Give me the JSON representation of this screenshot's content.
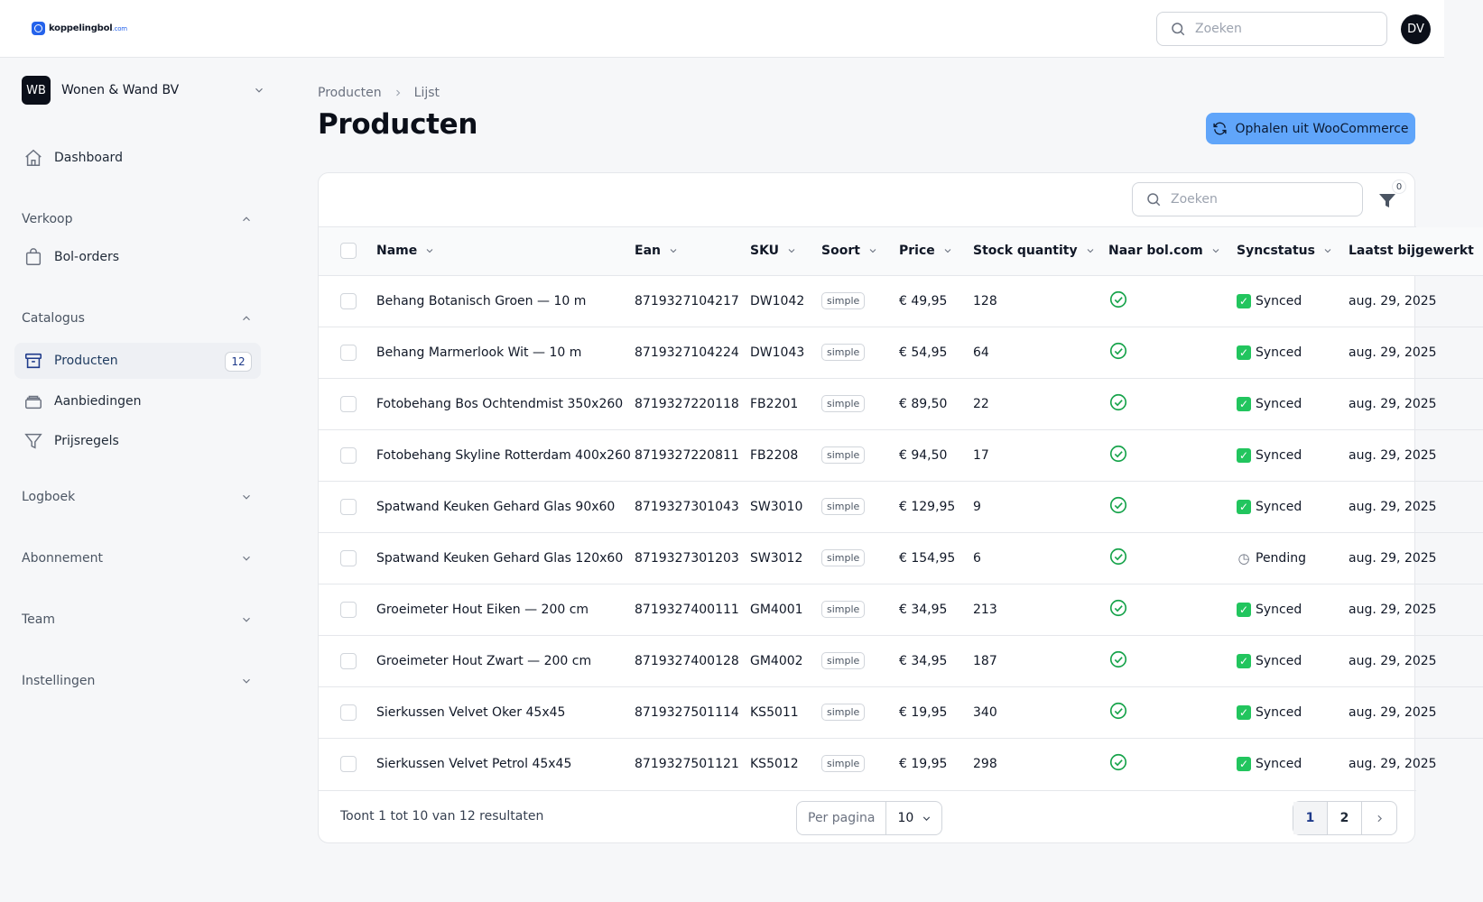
{
  "brand": {
    "name": "koppelingbol",
    "suffix": ".com"
  },
  "header": {
    "search_placeholder": "Zoeken",
    "user_initials": "DV"
  },
  "sidebar": {
    "org": {
      "initials": "WB",
      "name": "Wonen & Wand BV"
    },
    "dashboard": "Dashboard",
    "verkoop": {
      "label": "Verkoop",
      "items": [
        "Bol-orders"
      ]
    },
    "catalogus": {
      "label": "Catalogus",
      "items": [
        "Producten",
        "Aanbiedingen",
        "Prijsregels"
      ],
      "count": "12"
    },
    "groups": [
      "Logboek",
      "Abonnement",
      "Team",
      "Instellingen"
    ]
  },
  "breadcrumb": [
    "Producten",
    "Lijst"
  ],
  "page_title": "Producten",
  "fetch_button": "Ophalen uit WooCommerce",
  "table": {
    "search_placeholder": "Zoeken",
    "filter_count": "0",
    "columns": [
      "Name",
      "Ean",
      "SKU",
      "Soort",
      "Price",
      "Stock quantity",
      "Naar bol.com",
      "Syncstatus",
      "Laatst bijgewerkt"
    ],
    "rows": [
      {
        "name": "Behang Botanisch Groen — 10 m",
        "ean": "8719327104217",
        "sku": "DW1042",
        "type": "simple",
        "price": "€ 49,95",
        "stock": "128",
        "to_bol": true,
        "sync": "Synced",
        "updated": "aug. 29, 2025"
      },
      {
        "name": "Behang Marmerlook Wit — 10 m",
        "ean": "8719327104224",
        "sku": "DW1043",
        "type": "simple",
        "price": "€ 54,95",
        "stock": "64",
        "to_bol": true,
        "sync": "Synced",
        "updated": "aug. 29, 2025"
      },
      {
        "name": "Fotobehang Bos Ochtendmist 350x260",
        "ean": "8719327220118",
        "sku": "FB2201",
        "type": "simple",
        "price": "€ 89,50",
        "stock": "22",
        "to_bol": true,
        "sync": "Synced",
        "updated": "aug. 29, 2025"
      },
      {
        "name": "Fotobehang Skyline Rotterdam 400x260",
        "ean": "8719327220811",
        "sku": "FB2208",
        "type": "simple",
        "price": "€ 94,50",
        "stock": "17",
        "to_bol": true,
        "sync": "Synced",
        "updated": "aug. 29, 2025"
      },
      {
        "name": "Spatwand Keuken Gehard Glas 90x60",
        "ean": "8719327301043",
        "sku": "SW3010",
        "type": "simple",
        "price": "€ 129,95",
        "stock": "9",
        "to_bol": true,
        "sync": "Synced",
        "updated": "aug. 29, 2025"
      },
      {
        "name": "Spatwand Keuken Gehard Glas 120x60",
        "ean": "8719327301203",
        "sku": "SW3012",
        "type": "simple",
        "price": "€ 154,95",
        "stock": "6",
        "to_bol": true,
        "sync": "Pending",
        "updated": "aug. 29, 2025"
      },
      {
        "name": "Groeimeter Hout Eiken — 200 cm",
        "ean": "8719327400111",
        "sku": "GM4001",
        "type": "simple",
        "price": "€ 34,95",
        "stock": "213",
        "to_bol": true,
        "sync": "Synced",
        "updated": "aug. 29, 2025"
      },
      {
        "name": "Groeimeter Hout Zwart — 200 cm",
        "ean": "8719327400128",
        "sku": "GM4002",
        "type": "simple",
        "price": "€ 34,95",
        "stock": "187",
        "to_bol": true,
        "sync": "Synced",
        "updated": "aug. 29, 2025"
      },
      {
        "name": "Sierkussen Velvet Oker 45x45",
        "ean": "8719327501114",
        "sku": "KS5011",
        "type": "simple",
        "price": "€ 19,95",
        "stock": "340",
        "to_bol": true,
        "sync": "Synced",
        "updated": "aug. 29, 2025"
      },
      {
        "name": "Sierkussen Velvet Petrol 45x45",
        "ean": "8719327501121",
        "sku": "KS5012",
        "type": "simple",
        "price": "€ 19,95",
        "stock": "298",
        "to_bol": true,
        "sync": "Synced",
        "updated": "aug. 29, 2025"
      }
    ]
  },
  "footer": {
    "results_text": "Toont 1 tot 10 van 12 resultaten",
    "per_page_label": "Per pagina",
    "per_page_value": "10",
    "pages": [
      "1",
      "2"
    ],
    "current_page": "1"
  },
  "colors": {
    "accent": "#60a5fa",
    "success": "#16a34a",
    "primary_text": "#111827"
  }
}
